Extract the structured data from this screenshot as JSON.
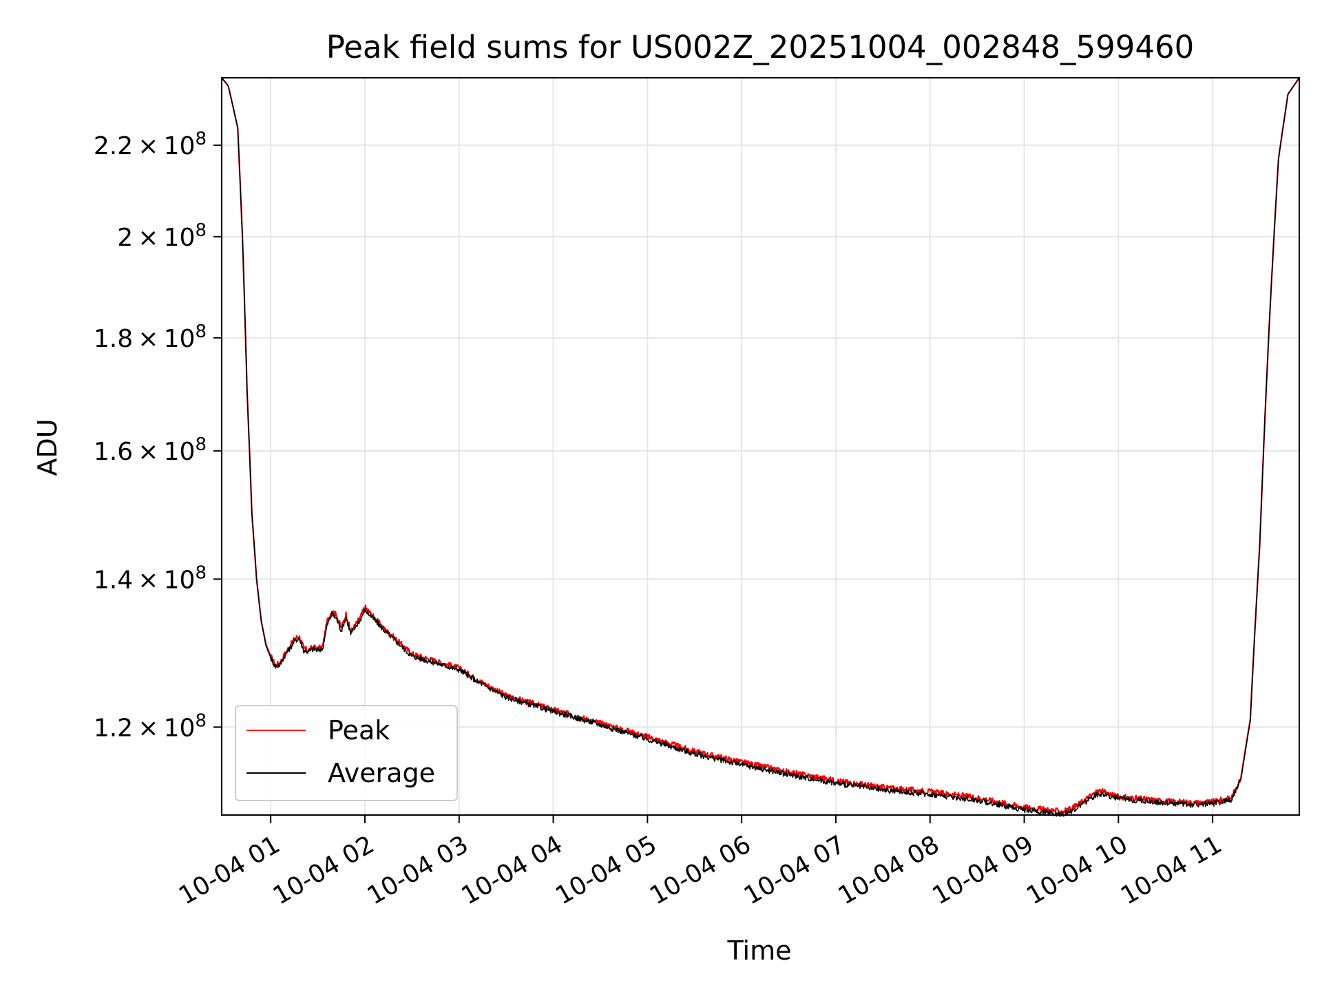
{
  "chart_data": {
    "type": "line",
    "title": "Peak field sums for US002Z_20251004_002848_599460",
    "xlabel": "Time",
    "ylabel": "ADU",
    "yscale": "log",
    "xlim_hours": [
      0.48,
      11.92
    ],
    "ylim": [
      109500000,
      236000000
    ],
    "grid": true,
    "legend_position": "lower-left",
    "x_ticks": [
      {
        "hour": 1,
        "label": "10-04 01"
      },
      {
        "hour": 2,
        "label": "10-04 02"
      },
      {
        "hour": 3,
        "label": "10-04 03"
      },
      {
        "hour": 4,
        "label": "10-04 04"
      },
      {
        "hour": 5,
        "label": "10-04 05"
      },
      {
        "hour": 6,
        "label": "10-04 06"
      },
      {
        "hour": 7,
        "label": "10-04 07"
      },
      {
        "hour": 8,
        "label": "10-04 08"
      },
      {
        "hour": 9,
        "label": "10-04 09"
      },
      {
        "hour": 10,
        "label": "10-04 10"
      },
      {
        "hour": 11,
        "label": "10-04 11"
      }
    ],
    "y_ticks": [
      {
        "value": 120000000,
        "mant": "1.2",
        "exp": "8"
      },
      {
        "value": 140000000,
        "mant": "1.4",
        "exp": "8"
      },
      {
        "value": 160000000,
        "mant": "1.6",
        "exp": "8"
      },
      {
        "value": 180000000,
        "mant": "1.8",
        "exp": "8"
      },
      {
        "value": 200000000,
        "mant": "2",
        "exp": "8"
      },
      {
        "value": 220000000,
        "mant": "2.2",
        "exp": "8"
      }
    ],
    "series": [
      {
        "name": "Peak",
        "color": "#ff0000",
        "x_hours": [
          0.48,
          0.55,
          0.6,
          0.65,
          0.7,
          0.75,
          0.8,
          0.85,
          0.9,
          0.95,
          1.0,
          1.05,
          1.1,
          1.15,
          1.2,
          1.25,
          1.3,
          1.35,
          1.4,
          1.45,
          1.5,
          1.55,
          1.6,
          1.65,
          1.7,
          1.75,
          1.8,
          1.85,
          1.9,
          1.95,
          2.0,
          2.2,
          2.5,
          3.0,
          3.2,
          3.5,
          4.0,
          4.5,
          5.0,
          5.5,
          6.0,
          6.5,
          7.0,
          7.5,
          8.0,
          8.5,
          9.0,
          9.4,
          9.5,
          9.6,
          9.7,
          9.8,
          10.0,
          10.2,
          10.5,
          10.8,
          11.0,
          11.2,
          11.3,
          11.4,
          11.5,
          11.6,
          11.7,
          11.8,
          11.92
        ],
        "values": [
          236000000,
          234000000,
          229000000,
          224000000,
          200000000,
          170000000,
          150000000,
          140000000,
          134000000,
          130800000,
          129200000,
          128000000,
          128300000,
          129500000,
          130500000,
          131500000,
          132000000,
          130300000,
          130000000,
          130400000,
          130200000,
          130500000,
          134000000,
          135500000,
          134800000,
          133000000,
          135000000,
          132500000,
          133500000,
          134500000,
          136000000,
          133000000,
          129500000,
          127600000,
          126000000,
          124000000,
          122200000,
          120500000,
          118800000,
          117000000,
          115700000,
          114500000,
          113500000,
          112700000,
          112200000,
          111500000,
          110400000,
          109900000,
          110200000,
          110900000,
          111700000,
          112300000,
          111600000,
          111400000,
          111100000,
          110900000,
          111000000,
          111500000,
          113800000,
          121000000,
          145000000,
          182000000,
          217000000,
          232000000,
          236000000
        ]
      },
      {
        "name": "Average",
        "color": "#000000",
        "x_hours": [
          0.48,
          0.55,
          0.6,
          0.65,
          0.7,
          0.75,
          0.8,
          0.85,
          0.9,
          0.95,
          1.0,
          1.05,
          1.1,
          1.15,
          1.2,
          1.25,
          1.3,
          1.35,
          1.4,
          1.45,
          1.5,
          1.55,
          1.6,
          1.65,
          1.7,
          1.75,
          1.8,
          1.85,
          1.9,
          1.95,
          2.0,
          2.2,
          2.5,
          3.0,
          3.2,
          3.5,
          4.0,
          4.5,
          5.0,
          5.5,
          6.0,
          6.5,
          7.0,
          7.5,
          8.0,
          8.5,
          9.0,
          9.4,
          9.5,
          9.6,
          9.7,
          9.8,
          10.0,
          10.2,
          10.5,
          10.8,
          11.0,
          11.2,
          11.3,
          11.4,
          11.5,
          11.6,
          11.7,
          11.8,
          11.92
        ],
        "values": [
          236000000,
          234000000,
          229000000,
          224000000,
          200000000,
          170000000,
          150000000,
          140000000,
          134000000,
          130600000,
          129000000,
          127800000,
          128100000,
          129300000,
          130200000,
          131200000,
          131700000,
          130000000,
          129800000,
          130200000,
          130000000,
          130200000,
          133500000,
          135000000,
          134300000,
          132700000,
          134600000,
          132200000,
          133200000,
          134200000,
          135600000,
          132800000,
          129200000,
          127400000,
          125800000,
          123800000,
          122000000,
          120300000,
          118500000,
          116700000,
          115400000,
          114200000,
          113200000,
          112400000,
          111900000,
          111200000,
          110100000,
          109600000,
          109900000,
          110600000,
          111400000,
          112000000,
          111400000,
          111200000,
          110900000,
          110700000,
          110800000,
          111300000,
          113600000,
          120800000,
          145000000,
          182000000,
          217000000,
          232000000,
          236000000
        ]
      }
    ]
  }
}
